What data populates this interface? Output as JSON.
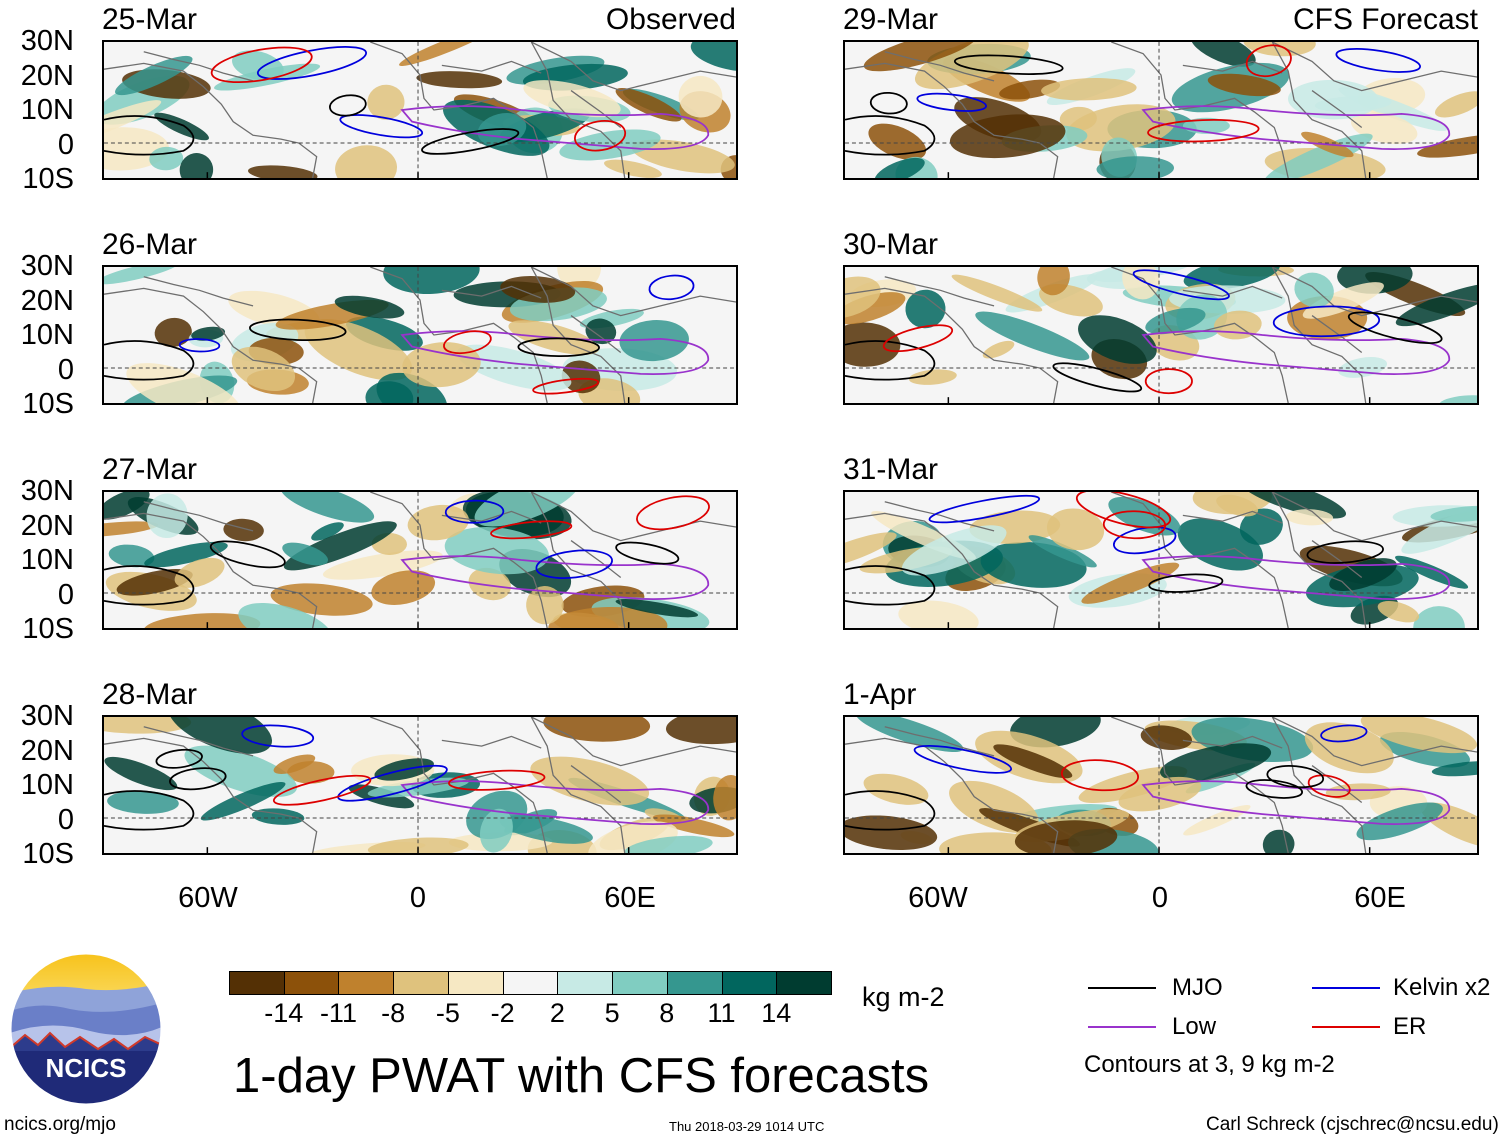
{
  "header": {
    "observed_label": "Observed",
    "forecast_label": "CFS Forecast"
  },
  "panels": [
    {
      "date": "25-Mar",
      "kind": "observed"
    },
    {
      "date": "26-Mar",
      "kind": "observed"
    },
    {
      "date": "27-Mar",
      "kind": "observed"
    },
    {
      "date": "28-Mar",
      "kind": "observed"
    },
    {
      "date": "29-Mar",
      "kind": "forecast"
    },
    {
      "date": "30-Mar",
      "kind": "forecast"
    },
    {
      "date": "31-Mar",
      "kind": "forecast"
    },
    {
      "date": "1-Apr",
      "kind": "forecast"
    }
  ],
  "axes": {
    "lat_labels": [
      "30N",
      "20N",
      "10N",
      "0",
      "10S"
    ],
    "lon_labels": [
      "60W",
      "0",
      "60E"
    ]
  },
  "colorbar": {
    "unit": "kg m-2",
    "tick_labels": [
      "-14",
      "-11",
      "-8",
      "-5",
      "-2",
      "2",
      "5",
      "8",
      "11",
      "14"
    ],
    "colors": [
      "#543005",
      "#8c510a",
      "#bf812d",
      "#dfc27d",
      "#f6e8c3",
      "#f5f5f5",
      "#c7eae5",
      "#80cdc1",
      "#35978f",
      "#01665e",
      "#003c30"
    ]
  },
  "legend": {
    "items": [
      {
        "label": "MJO",
        "color": "#000000"
      },
      {
        "label": "Kelvin x2",
        "color": "#0000dd"
      },
      {
        "label": "Low",
        "color": "#9933cc"
      },
      {
        "label": "ER",
        "color": "#dd0000"
      }
    ],
    "note": "Contours at 3, 9 kg m-2"
  },
  "title": "1-day PWAT with CFS forecasts",
  "logo": {
    "text": "NCICS"
  },
  "footer": {
    "url": "ncics.org/mjo",
    "timestamp": "Thu 2018-03-29 1014 UTC",
    "credit": "Carl Schreck (cjschrec@ncsu.edu)"
  }
}
